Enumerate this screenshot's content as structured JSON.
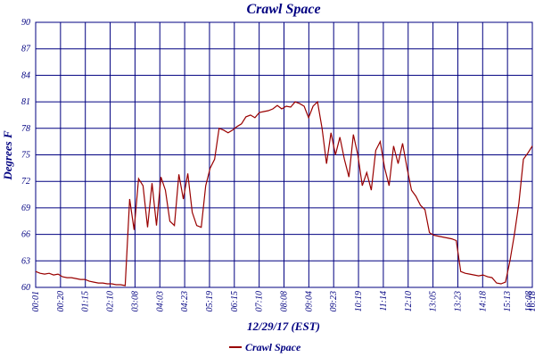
{
  "chart_data": {
    "type": "line",
    "title": "Crawl Space",
    "xlabel": "12/29/17 (EST)",
    "ylabel": "Degrees F",
    "x_tick_labels": [
      "00:01",
      "00:20",
      "01:15",
      "02:10",
      "03:08",
      "04:03",
      "04:23",
      "05:19",
      "06:15",
      "07:10",
      "08:08",
      "09:04",
      "09:23",
      "10:19",
      "11:14",
      "12:10",
      "13:05",
      "13:23",
      "14:18",
      "15:13",
      "16:08",
      "16:18"
    ],
    "ylim": [
      60,
      90
    ],
    "yticks": [
      60,
      63,
      66,
      69,
      72,
      75,
      78,
      81,
      84,
      87,
      90
    ],
    "grid": true,
    "series": [
      {
        "name": "Crawl Space",
        "color": "#990000",
        "values": [
          61.8,
          61.6,
          61.5,
          61.6,
          61.4,
          61.5,
          61.2,
          61.1,
          61.1,
          61.0,
          60.9,
          60.9,
          60.7,
          60.6,
          60.5,
          60.5,
          60.4,
          60.4,
          60.3,
          60.3,
          60.2,
          70.0,
          66.5,
          72.3,
          71.5,
          66.8,
          71.8,
          67.0,
          72.5,
          71.0,
          67.5,
          67.0,
          72.8,
          70.0,
          72.9,
          68.5,
          67.0,
          66.8,
          71.5,
          73.5,
          74.5,
          78.0,
          77.8,
          77.5,
          77.8,
          78.2,
          78.5,
          79.3,
          79.5,
          79.2,
          79.8,
          79.9,
          80.0,
          80.2,
          80.6,
          80.2,
          80.5,
          80.4,
          81.0,
          80.8,
          80.5,
          79.2,
          80.5,
          81.0,
          78.0,
          74.0,
          77.5,
          75.0,
          77.0,
          74.5,
          72.5,
          77.3,
          75.0,
          71.5,
          73.0,
          71.0,
          75.5,
          76.5,
          73.5,
          71.5,
          76.0,
          74.0,
          76.3,
          73.5,
          71.0,
          70.3,
          69.3,
          68.8,
          66.2,
          65.9,
          65.8,
          65.7,
          65.6,
          65.5,
          65.3,
          61.8,
          61.6,
          61.5,
          61.4,
          61.3,
          61.4,
          61.2,
          61.1,
          60.5,
          60.4,
          60.6,
          63.0,
          66.0,
          69.5,
          74.5,
          75.2,
          76.0
        ]
      }
    ]
  }
}
